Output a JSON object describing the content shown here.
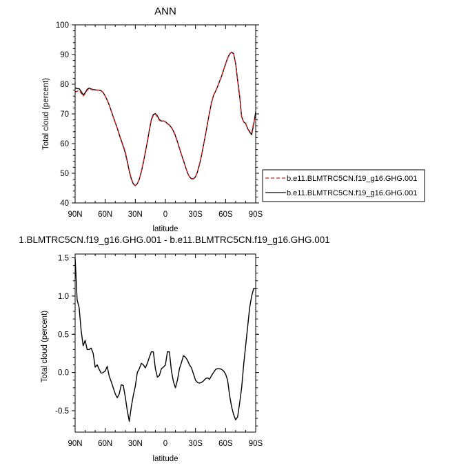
{
  "chart_data": [
    {
      "type": "line",
      "title": "ANN",
      "xlabel": "latitude",
      "ylabel": "Total cloud (percent)",
      "xlim": [
        90,
        -90
      ],
      "ylim": [
        40,
        100
      ],
      "x_ticks": [
        90,
        60,
        30,
        0,
        -30,
        -60,
        -90
      ],
      "x_tick_labels": [
        "90N",
        "60N",
        "30N",
        "0",
        "30S",
        "60S",
        "90S"
      ],
      "y_ticks": [
        40,
        50,
        60,
        70,
        80,
        90,
        100
      ],
      "y_tick_labels": [
        "40",
        "50",
        "60",
        "70",
        "80",
        "90",
        "100"
      ],
      "grid": false,
      "legend": "outside-right",
      "series": [
        {
          "name": "b.e11.BLMTRC5CN.f19_g16.GHG.001",
          "color": "#e41a1c",
          "dash": "dashed",
          "x": [
            90,
            88,
            86,
            84,
            82,
            80,
            78,
            76,
            74,
            72,
            70,
            68,
            66,
            64,
            62,
            60,
            58,
            56,
            54,
            52,
            50,
            48,
            46,
            44,
            42,
            40,
            38,
            36,
            34,
            32,
            30,
            28,
            26,
            24,
            22,
            20,
            18,
            16,
            14,
            12,
            10,
            8,
            6,
            4,
            2,
            0,
            -2,
            -4,
            -6,
            -8,
            -10,
            -12,
            -14,
            -16,
            -18,
            -20,
            -22,
            -24,
            -26,
            -28,
            -30,
            -32,
            -34,
            -36,
            -38,
            -40,
            -42,
            -44,
            -46,
            -48,
            -50,
            -52,
            -54,
            -56,
            -58,
            -60,
            -62,
            -64,
            -66,
            -68,
            -70,
            -72,
            -74,
            -76,
            -78,
            -80,
            -82,
            -84,
            -86,
            -88,
            -90
          ],
          "values": [
            77.4,
            77.6,
            77.9,
            77.0,
            76.0,
            76.8,
            78.0,
            78.4,
            78.2,
            78.1,
            78.1,
            78.0,
            78.0,
            77.8,
            77.2,
            76.0,
            74.6,
            73.0,
            71.0,
            69.0,
            67.1,
            65.2,
            63.2,
            61.2,
            59.3,
            57.3,
            54.2,
            51.0,
            48.3,
            46.5,
            45.9,
            46.5,
            48.0,
            50.5,
            53.6,
            57.0,
            60.5,
            64.4,
            67.8,
            69.5,
            69.9,
            69.0,
            67.8,
            67.6,
            67.6,
            67.4,
            66.8,
            66.3,
            65.5,
            64.3,
            62.8,
            60.7,
            58.5,
            56.3,
            54.3,
            52.2,
            50.2,
            48.8,
            48.2,
            48.2,
            48.9,
            50.5,
            53.0,
            56.0,
            59.5,
            63.0,
            66.8,
            70.5,
            73.8,
            76.3,
            77.6,
            79.2,
            81.0,
            82.7,
            84.8,
            86.8,
            88.8,
            90.2,
            90.7,
            90.3,
            87.0,
            81.3,
            76.0,
            69.0,
            67.3,
            66.8,
            65.0,
            64.2,
            63.6,
            67.0,
            69.5
          ]
        },
        {
          "name": "b.e11.BLMTRC5CN.f19_g16.GHG.001",
          "color": "#000000",
          "dash": "solid",
          "x": [
            90,
            88,
            86,
            84,
            82,
            80,
            78,
            76,
            74,
            72,
            70,
            68,
            66,
            64,
            62,
            60,
            58,
            56,
            54,
            52,
            50,
            48,
            46,
            44,
            42,
            40,
            38,
            36,
            34,
            32,
            30,
            28,
            26,
            24,
            22,
            20,
            18,
            16,
            14,
            12,
            10,
            8,
            6,
            4,
            2,
            0,
            -2,
            -4,
            -6,
            -8,
            -10,
            -12,
            -14,
            -16,
            -18,
            -20,
            -22,
            -24,
            -26,
            -28,
            -30,
            -32,
            -34,
            -36,
            -38,
            -40,
            -42,
            -44,
            -46,
            -48,
            -50,
            -52,
            -54,
            -56,
            -58,
            -60,
            -62,
            -64,
            -66,
            -68,
            -70,
            -72,
            -74,
            -76,
            -78,
            -80,
            -82,
            -84,
            -86,
            -88,
            -90
          ],
          "values": [
            78.8,
            78.5,
            78.5,
            77.6,
            76.4,
            77.1,
            78.3,
            78.7,
            78.4,
            78.2,
            78.1,
            78.0,
            78.0,
            77.8,
            77.2,
            76.0,
            74.6,
            73.0,
            71.0,
            69.0,
            67.1,
            65.2,
            63.0,
            61.0,
            59.0,
            56.9,
            53.9,
            50.7,
            48.1,
            46.4,
            45.8,
            46.5,
            48.0,
            50.5,
            53.6,
            57.1,
            60.6,
            64.6,
            68.1,
            69.8,
            70.1,
            69.3,
            68.1,
            67.6,
            67.6,
            67.4,
            66.7,
            66.2,
            65.4,
            64.2,
            62.6,
            60.6,
            58.4,
            56.3,
            54.3,
            52.2,
            50.2,
            48.8,
            48.1,
            48.1,
            48.8,
            50.5,
            53.0,
            56.0,
            59.5,
            63.0,
            66.8,
            70.5,
            73.8,
            76.3,
            77.6,
            79.2,
            81.0,
            82.7,
            84.8,
            86.8,
            88.8,
            90.2,
            90.8,
            90.3,
            87.0,
            81.3,
            76.0,
            69.0,
            67.3,
            66.8,
            65.0,
            63.9,
            63.0,
            66.5,
            70.6
          ]
        }
      ]
    },
    {
      "type": "line",
      "title": "1.BLMTRC5CN.f19_g16.GHG.001 - b.e11.BLMTRC5CN.f19_g16.GHG.001",
      "xlabel": "latitude",
      "ylabel": "Total cloud (percent)",
      "xlim": [
        90,
        -90
      ],
      "ylim": [
        -0.78,
        1.55
      ],
      "x_ticks": [
        90,
        60,
        30,
        0,
        -30,
        -60,
        -90
      ],
      "x_tick_labels": [
        "90N",
        "60N",
        "30N",
        "0",
        "30S",
        "60S",
        "90S"
      ],
      "y_ticks": [
        -0.5,
        0.0,
        0.5,
        1.0,
        1.5
      ],
      "y_tick_labels": [
        "-0.5",
        "0.0",
        "0.5",
        "1.0",
        "1.5"
      ],
      "grid": false,
      "series": [
        {
          "color": "#000000",
          "dash": "solid",
          "x": [
            90,
            88,
            86,
            84,
            82,
            80,
            78,
            76,
            74,
            72,
            70,
            68,
            66,
            64,
            62,
            60,
            58,
            56,
            54,
            52,
            50,
            48,
            46,
            44,
            42,
            40,
            38,
            36,
            34,
            32,
            30,
            28,
            26,
            24,
            22,
            20,
            18,
            16,
            14,
            12,
            10,
            8,
            6,
            4,
            2,
            0,
            -2,
            -4,
            -6,
            -8,
            -10,
            -12,
            -14,
            -16,
            -18,
            -20,
            -22,
            -24,
            -26,
            -28,
            -30,
            -32,
            -34,
            -36,
            -38,
            -40,
            -42,
            -44,
            -46,
            -48,
            -50,
            -52,
            -54,
            -56,
            -58,
            -60,
            -62,
            -64,
            -66,
            -68,
            -70,
            -72,
            -74,
            -76,
            -78,
            -80,
            -82,
            -84,
            -86,
            -88,
            -90
          ],
          "values": [
            1.5,
            0.95,
            0.85,
            0.55,
            0.35,
            0.42,
            0.3,
            0.3,
            0.32,
            0.25,
            0.07,
            0.1,
            0.04,
            -0.01,
            0.0,
            0.02,
            0.08,
            -0.05,
            -0.12,
            -0.2,
            -0.28,
            -0.33,
            -0.28,
            -0.16,
            -0.17,
            -0.32,
            -0.5,
            -0.64,
            -0.45,
            -0.3,
            -0.18,
            0.0,
            0.05,
            0.12,
            0.1,
            0.06,
            0.12,
            0.2,
            0.27,
            0.27,
            0.05,
            -0.06,
            -0.04,
            0.05,
            0.07,
            0.1,
            0.27,
            0.27,
            0.02,
            -0.12,
            -0.2,
            -0.1,
            0.05,
            0.13,
            0.22,
            0.2,
            0.16,
            0.1,
            0.06,
            -0.02,
            -0.1,
            -0.13,
            -0.14,
            -0.13,
            -0.11,
            -0.08,
            -0.07,
            -0.09,
            -0.04,
            0.0,
            0.04,
            0.05,
            0.05,
            0.04,
            0.02,
            -0.02,
            -0.1,
            -0.3,
            -0.45,
            -0.55,
            -0.62,
            -0.58,
            -0.4,
            -0.2,
            0.1,
            0.35,
            0.6,
            0.85,
            1.0,
            1.1,
            1.1
          ]
        }
      ]
    }
  ]
}
